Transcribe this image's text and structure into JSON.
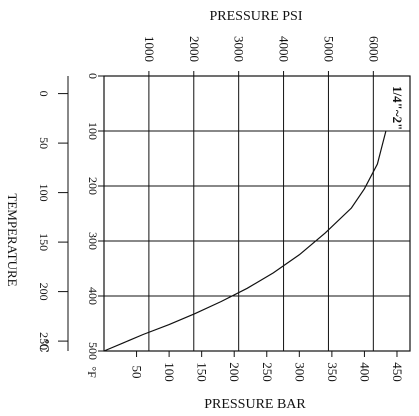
{
  "chart_data": {
    "type": "line",
    "title": "",
    "top_axis": {
      "label": "PRESSURE PSI",
      "ticks": [
        "1000",
        "2000",
        "3000",
        "4000",
        "5000",
        "6000"
      ],
      "values": [
        1000,
        2000,
        3000,
        4000,
        5000,
        6000
      ]
    },
    "bottom_axis": {
      "label": "PRESSURE BAR",
      "ticks": [
        "50",
        "100",
        "150",
        "200",
        "250",
        "300",
        "350",
        "400",
        "450"
      ],
      "values": [
        50,
        100,
        150,
        200,
        250,
        300,
        350,
        400,
        450
      ],
      "xlim": [
        0,
        470
      ]
    },
    "left_inner_axis": {
      "unit": "°F",
      "ticks": [
        "0",
        "100",
        "200",
        "300",
        "400",
        "500"
      ],
      "values": [
        0,
        100,
        200,
        300,
        400,
        500
      ],
      "ylim": [
        0,
        500
      ]
    },
    "left_outer_axis": {
      "label": "TEMPERATURE",
      "unit": "℃",
      "ticks": [
        "0",
        "50",
        "100",
        "150",
        "200",
        "250"
      ],
      "values": [
        0,
        50,
        100,
        150,
        200,
        250
      ]
    },
    "grid": true,
    "series": [
      {
        "name": "1/4\"~2\"",
        "x_bar": [
          0,
          30,
          60,
          100,
          140,
          180,
          220,
          260,
          300,
          340,
          380,
          400,
          420,
          433
        ],
        "y_degF": [
          500,
          485,
          470,
          452,
          432,
          410,
          386,
          358,
          325,
          285,
          240,
          205,
          160,
          100
        ]
      }
    ]
  }
}
